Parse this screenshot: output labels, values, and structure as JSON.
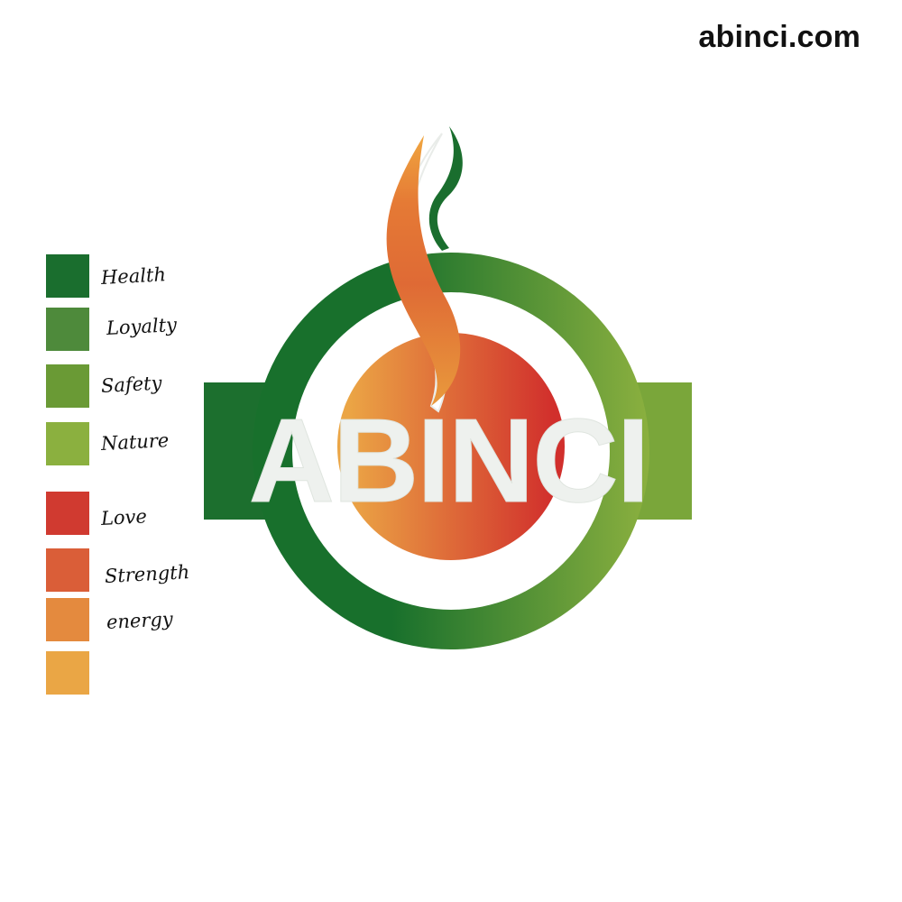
{
  "header": {
    "site_url": "abinci.com"
  },
  "palette": {
    "swatches": [
      {
        "color": "#1a6e2e",
        "label": "Health"
      },
      {
        "color": "#4e8a3b",
        "label": "Loyalty"
      },
      {
        "color": "#6a9a35",
        "label": "Safety"
      },
      {
        "color": "#8bb03f",
        "label": "Nature"
      },
      {
        "color": "#d03a30",
        "label": "Love"
      },
      {
        "color": "#da5e38",
        "label": "Strength"
      },
      {
        "color": "#e48a3e",
        "label": "energy"
      },
      {
        "color": "#eaa645",
        "label": ""
      }
    ]
  },
  "logo": {
    "wordmark": "ABINCI",
    "colors": {
      "ring_dark_green": "#18702c",
      "ring_light_green": "#8bb03f",
      "core_red": "#d12f2c",
      "core_orange": "#eba545",
      "letter_fill": "#eef1ee"
    }
  }
}
